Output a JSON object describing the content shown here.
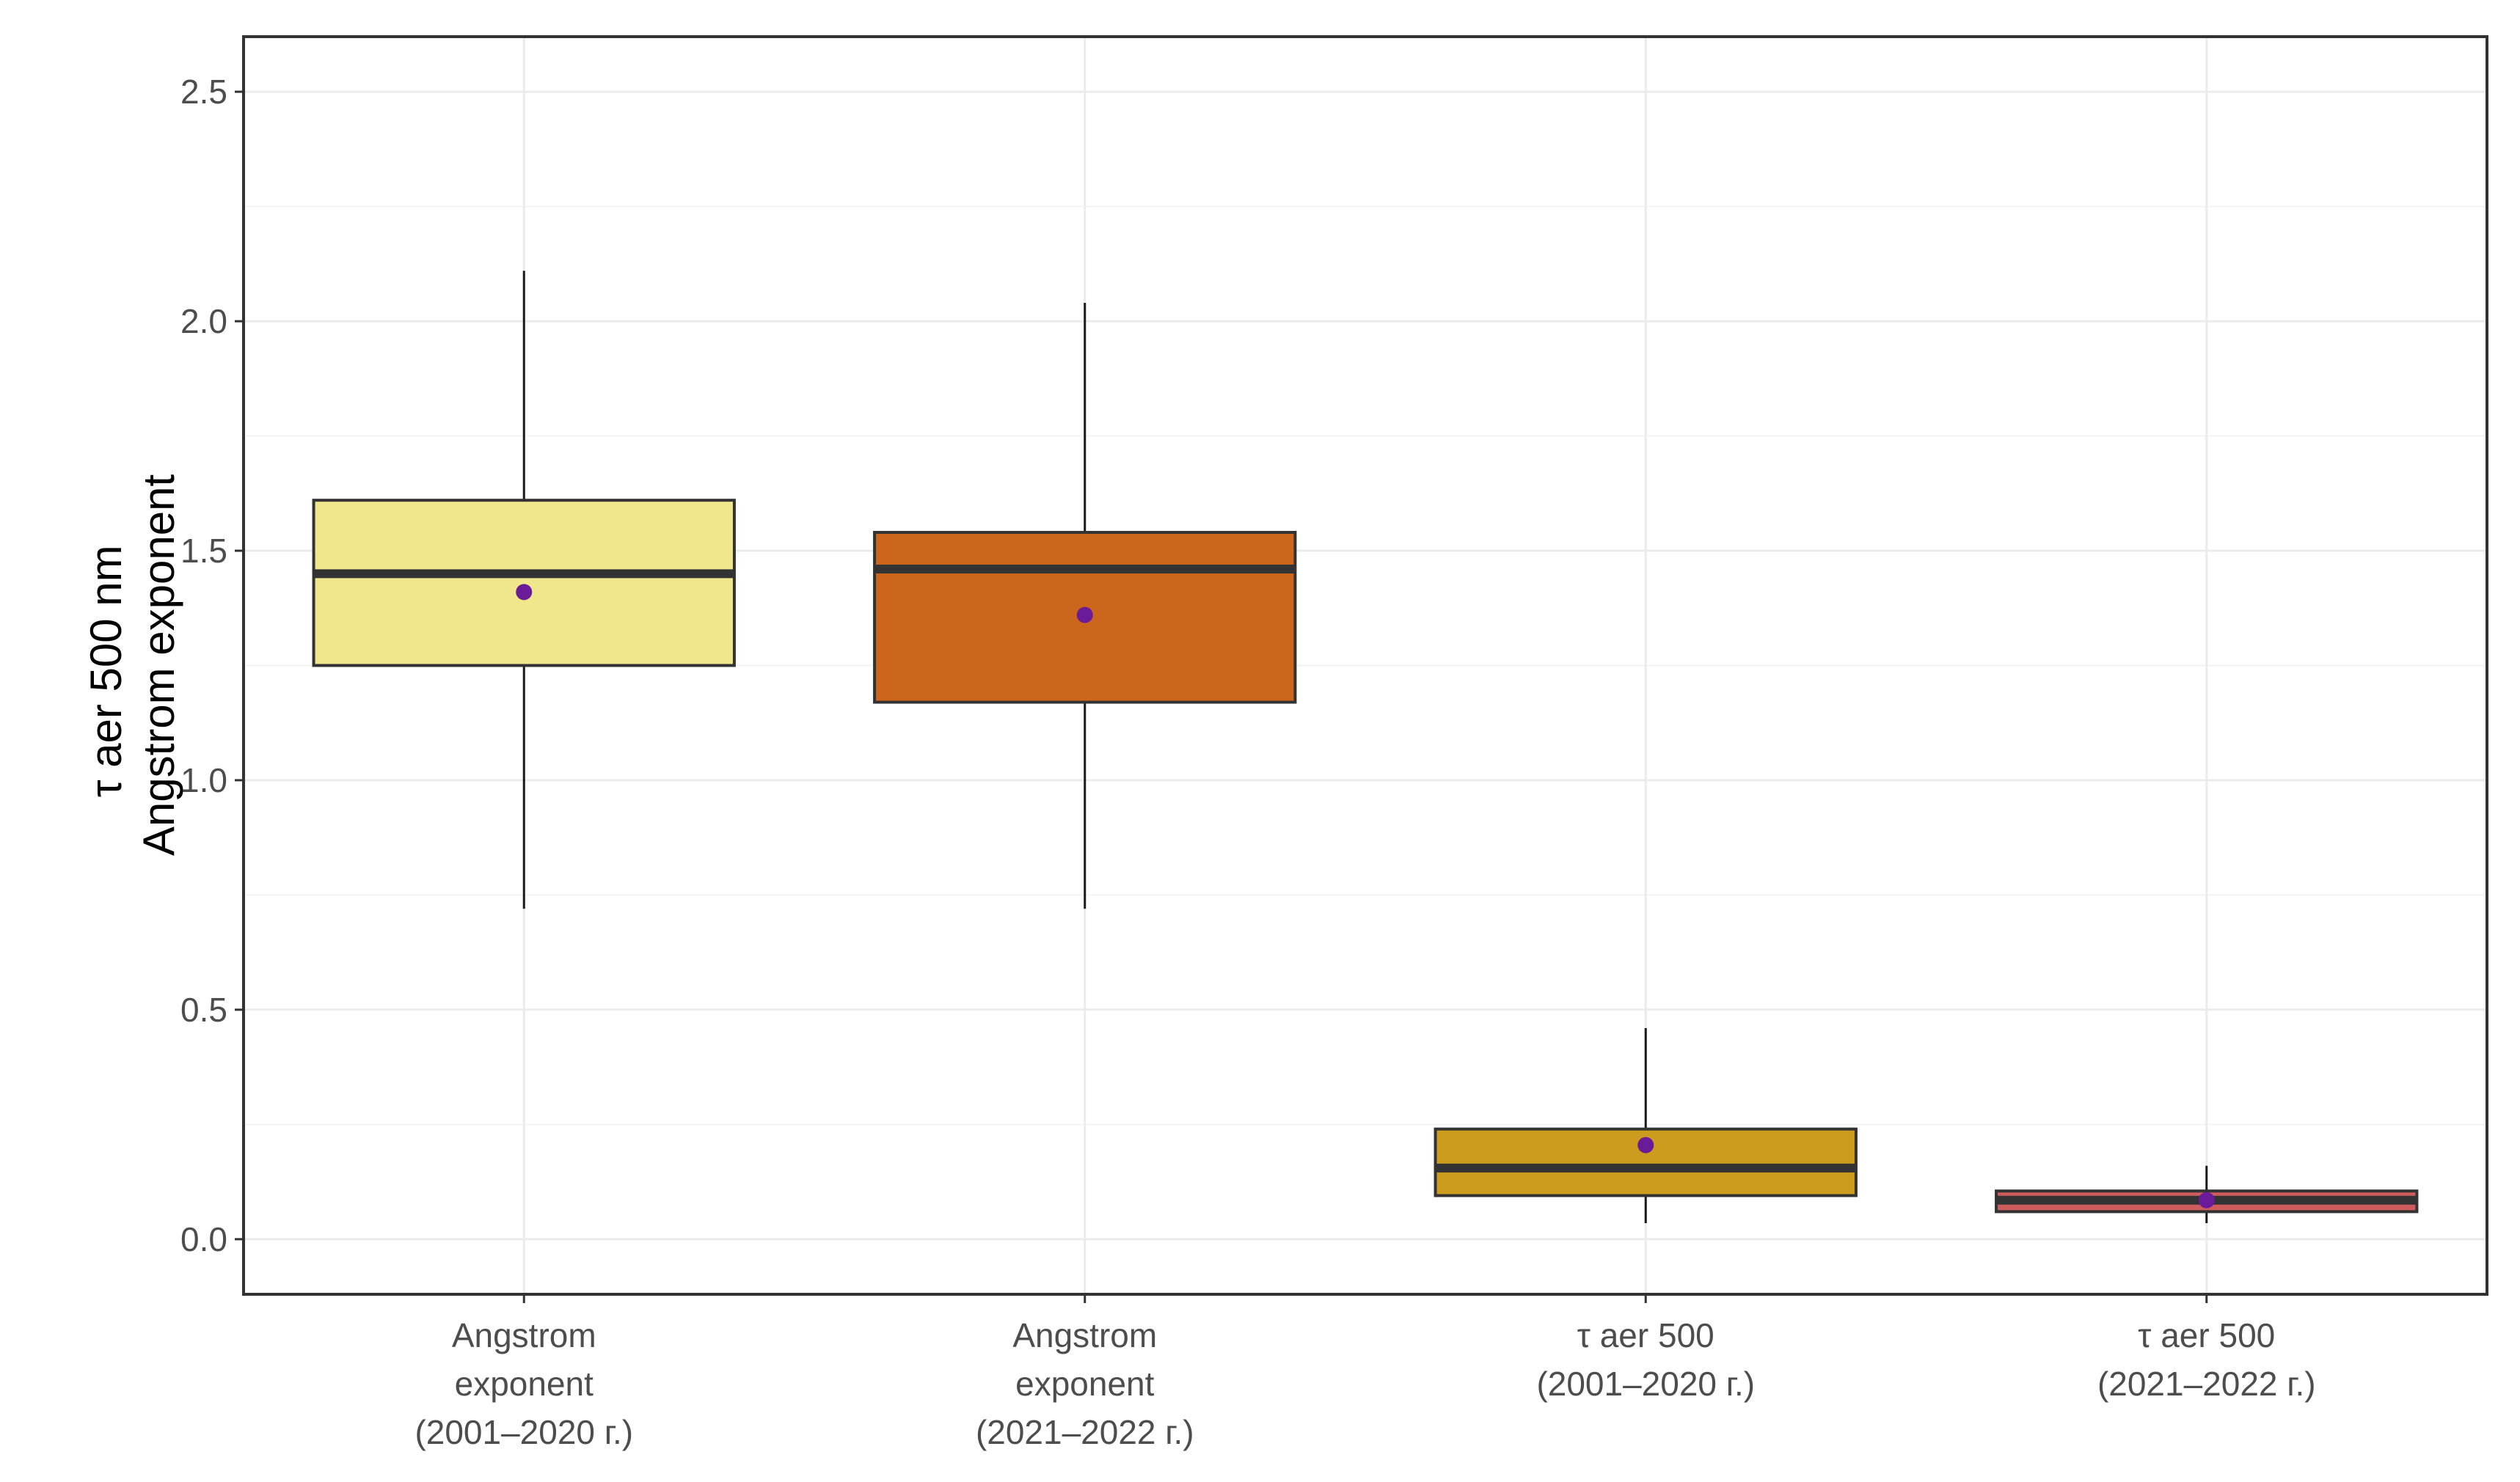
{
  "chart_data": {
    "type": "boxplot",
    "title": "",
    "xlabel": "",
    "ylabel_lines": [
      "τ aer 500 nm",
      "Angstrom exponent"
    ],
    "ylim": [
      -0.12,
      2.62
    ],
    "yticks": [
      {
        "value": 0.0,
        "label": "0.0"
      },
      {
        "value": 0.5,
        "label": "0.5"
      },
      {
        "value": 1.0,
        "label": "1.0"
      },
      {
        "value": 1.5,
        "label": "1.5"
      },
      {
        "value": 2.0,
        "label": "2.0"
      },
      {
        "value": 2.5,
        "label": "2.5"
      }
    ],
    "grid": true,
    "legend": "none",
    "mean_marker_color": "#6a1b9a",
    "categories": [
      {
        "label_lines": [
          "Angstrom",
          "exponent",
          "(2001–2020 г.)"
        ],
        "whisker_low": 0.72,
        "q1": 1.25,
        "median": 1.45,
        "q3": 1.61,
        "whisker_high": 2.11,
        "mean": 1.41,
        "fill": "#f0e68c"
      },
      {
        "label_lines": [
          "Angstrom",
          "exponent",
          "(2021–2022 г.)"
        ],
        "whisker_low": 0.72,
        "q1": 1.17,
        "median": 1.46,
        "q3": 1.54,
        "whisker_high": 2.04,
        "mean": 1.36,
        "fill": "#cd661d"
      },
      {
        "label_lines": [
          "τ aer 500",
          "(2001–2020 г.)"
        ],
        "whisker_low": 0.035,
        "q1": 0.095,
        "median": 0.155,
        "q3": 0.24,
        "whisker_high": 0.46,
        "mean": 0.205,
        "fill": "#cd9b1d"
      },
      {
        "label_lines": [
          "τ aer 500",
          "(2021–2022 г.)"
        ],
        "whisker_low": 0.035,
        "q1": 0.06,
        "median": 0.085,
        "q3": 0.105,
        "whisker_high": 0.16,
        "mean": 0.085,
        "fill": "#cd5c5c"
      }
    ]
  }
}
